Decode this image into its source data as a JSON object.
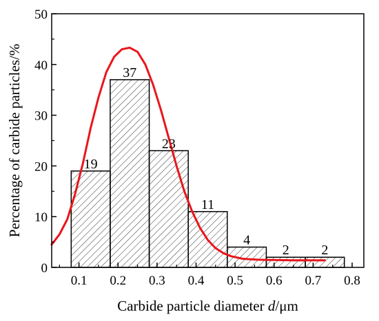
{
  "chart_data": {
    "type": "bar",
    "bins": [
      {
        "x0": 0.08,
        "x1": 0.18,
        "value": 19
      },
      {
        "x0": 0.18,
        "x1": 0.28,
        "value": 37
      },
      {
        "x0": 0.28,
        "x1": 0.38,
        "value": 23
      },
      {
        "x0": 0.38,
        "x1": 0.48,
        "value": 11
      },
      {
        "x0": 0.48,
        "x1": 0.58,
        "value": 4
      },
      {
        "x0": 0.58,
        "x1": 0.68,
        "value": 2
      },
      {
        "x0": 0.68,
        "x1": 0.78,
        "value": 2
      }
    ],
    "data_labels": [
      "19",
      "37",
      "23",
      "11",
      "4",
      "2",
      "2"
    ],
    "fit_curve": {
      "color": "#e8161b",
      "points": [
        [
          0.03,
          4.5
        ],
        [
          0.05,
          6.5
        ],
        [
          0.07,
          9.5
        ],
        [
          0.09,
          14.5
        ],
        [
          0.11,
          20.5
        ],
        [
          0.13,
          27.5
        ],
        [
          0.15,
          33.5
        ],
        [
          0.17,
          38.5
        ],
        [
          0.19,
          41.5
        ],
        [
          0.21,
          43
        ],
        [
          0.23,
          43.3
        ],
        [
          0.25,
          42.5
        ],
        [
          0.27,
          40
        ],
        [
          0.29,
          36
        ],
        [
          0.31,
          31
        ],
        [
          0.33,
          25.5
        ],
        [
          0.35,
          20
        ],
        [
          0.37,
          15
        ],
        [
          0.39,
          11
        ],
        [
          0.41,
          7.8
        ],
        [
          0.43,
          5.4
        ],
        [
          0.45,
          3.8
        ],
        [
          0.47,
          2.8
        ],
        [
          0.49,
          2.2
        ],
        [
          0.52,
          1.7
        ],
        [
          0.56,
          1.5
        ],
        [
          0.6,
          1.45
        ],
        [
          0.65,
          1.4
        ],
        [
          0.7,
          1.4
        ],
        [
          0.73,
          1.4
        ]
      ]
    },
    "xlabel_prefix": "Carbide particle diameter ",
    "xlabel_var": "d",
    "xlabel_suffix": "/μm",
    "ylabel": "Percentage of carbide particles/%",
    "xlim": [
      0.03,
      0.83
    ],
    "ylim": [
      0,
      50
    ],
    "x_ticks": [
      0.1,
      0.2,
      0.3,
      0.4,
      0.5,
      0.6,
      0.7,
      0.8
    ],
    "x_tick_labels": [
      "0.1",
      "0.2",
      "0.3",
      "0.4",
      "0.5",
      "0.6",
      "0.7",
      "0.8"
    ],
    "y_ticks": [
      0,
      10,
      20,
      30,
      40,
      50
    ],
    "y_tick_labels": [
      "0",
      "10",
      "20",
      "30",
      "40",
      "50"
    ],
    "bar_fill": "hatched",
    "grid": false
  }
}
